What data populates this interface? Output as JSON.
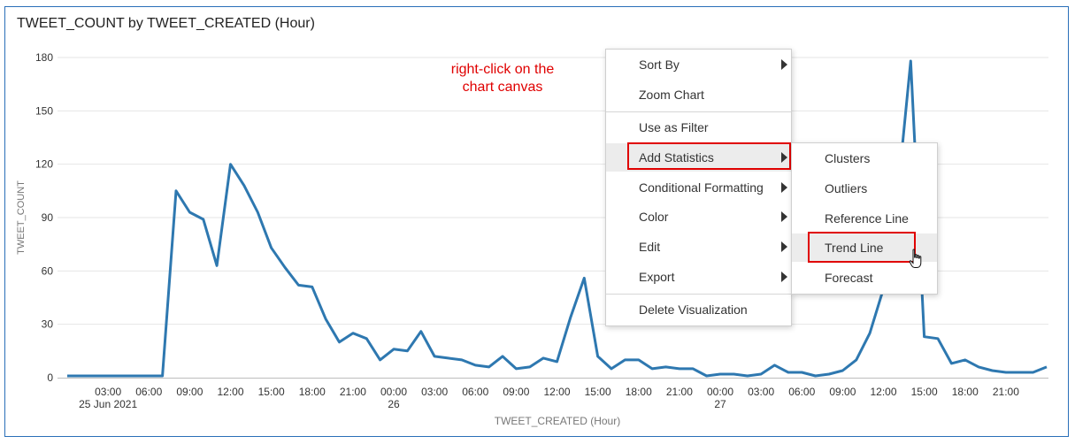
{
  "chart_data": {
    "type": "line",
    "title": "TWEET_COUNT by TWEET_CREATED (Hour)",
    "xlabel": "TWEET_CREATED (Hour)",
    "ylabel": "TWEET_COUNT",
    "ylim": [
      0,
      180
    ],
    "yticks": [
      0,
      30,
      60,
      90,
      120,
      150,
      180
    ],
    "grid": true,
    "x_start_hour": 0,
    "x_step_hours": 1,
    "x_ticks": [
      {
        "hour": 3,
        "label": "03:00",
        "sub": "25 Jun 2021"
      },
      {
        "hour": 6,
        "label": "06:00",
        "sub": ""
      },
      {
        "hour": 9,
        "label": "09:00",
        "sub": ""
      },
      {
        "hour": 12,
        "label": "12:00",
        "sub": ""
      },
      {
        "hour": 15,
        "label": "15:00",
        "sub": ""
      },
      {
        "hour": 18,
        "label": "18:00",
        "sub": ""
      },
      {
        "hour": 21,
        "label": "21:00",
        "sub": ""
      },
      {
        "hour": 24,
        "label": "00:00",
        "sub": "26"
      },
      {
        "hour": 27,
        "label": "03:00",
        "sub": ""
      },
      {
        "hour": 30,
        "label": "06:00",
        "sub": ""
      },
      {
        "hour": 33,
        "label": "09:00",
        "sub": ""
      },
      {
        "hour": 36,
        "label": "12:00",
        "sub": ""
      },
      {
        "hour": 39,
        "label": "15:00",
        "sub": ""
      },
      {
        "hour": 42,
        "label": "18:00",
        "sub": ""
      },
      {
        "hour": 45,
        "label": "21:00",
        "sub": ""
      },
      {
        "hour": 48,
        "label": "00:00",
        "sub": "27"
      },
      {
        "hour": 51,
        "label": "03:00",
        "sub": ""
      },
      {
        "hour": 54,
        "label": "06:00",
        "sub": ""
      },
      {
        "hour": 57,
        "label": "09:00",
        "sub": ""
      },
      {
        "hour": 60,
        "label": "12:00",
        "sub": ""
      },
      {
        "hour": 63,
        "label": "15:00",
        "sub": ""
      },
      {
        "hour": 66,
        "label": "18:00",
        "sub": ""
      },
      {
        "hour": 69,
        "label": "21:00",
        "sub": ""
      }
    ],
    "series": [
      {
        "name": "TWEET_COUNT",
        "color": "#2e78b0",
        "values": [
          1,
          1,
          1,
          1,
          1,
          1,
          1,
          1,
          105,
          93,
          89,
          63,
          120,
          108,
          93,
          73,
          62,
          52,
          51,
          33,
          20,
          25,
          22,
          10,
          16,
          15,
          26,
          12,
          11,
          10,
          7,
          6,
          12,
          5,
          6,
          11,
          9,
          34,
          56,
          12,
          5,
          10,
          10,
          5,
          6,
          5,
          5,
          1,
          2,
          2,
          1,
          2,
          7,
          3,
          3,
          1,
          2,
          4,
          10,
          25,
          50,
          100,
          178,
          23,
          22,
          8,
          10,
          6,
          4,
          3,
          3,
          3,
          6
        ]
      }
    ]
  },
  "annotation": {
    "line1": "right-click on the",
    "line2": "chart canvas"
  },
  "context_menu": {
    "items": {
      "sort_by": "Sort By",
      "zoom_chart": "Zoom Chart",
      "use_as_filter": "Use as Filter",
      "add_statistics": "Add Statistics",
      "conditional_formatting": "Conditional Formatting",
      "color": "Color",
      "edit": "Edit",
      "export": "Export",
      "delete_visualization": "Delete Visualization"
    }
  },
  "submenu": {
    "items": {
      "clusters": "Clusters",
      "outliers": "Outliers",
      "reference_line": "Reference Line",
      "trend_line": "Trend Line",
      "forecast": "Forecast"
    }
  },
  "colors": {
    "line": "#2e78b0",
    "highlight": "#e00000",
    "frame": "#2a6fb8"
  }
}
